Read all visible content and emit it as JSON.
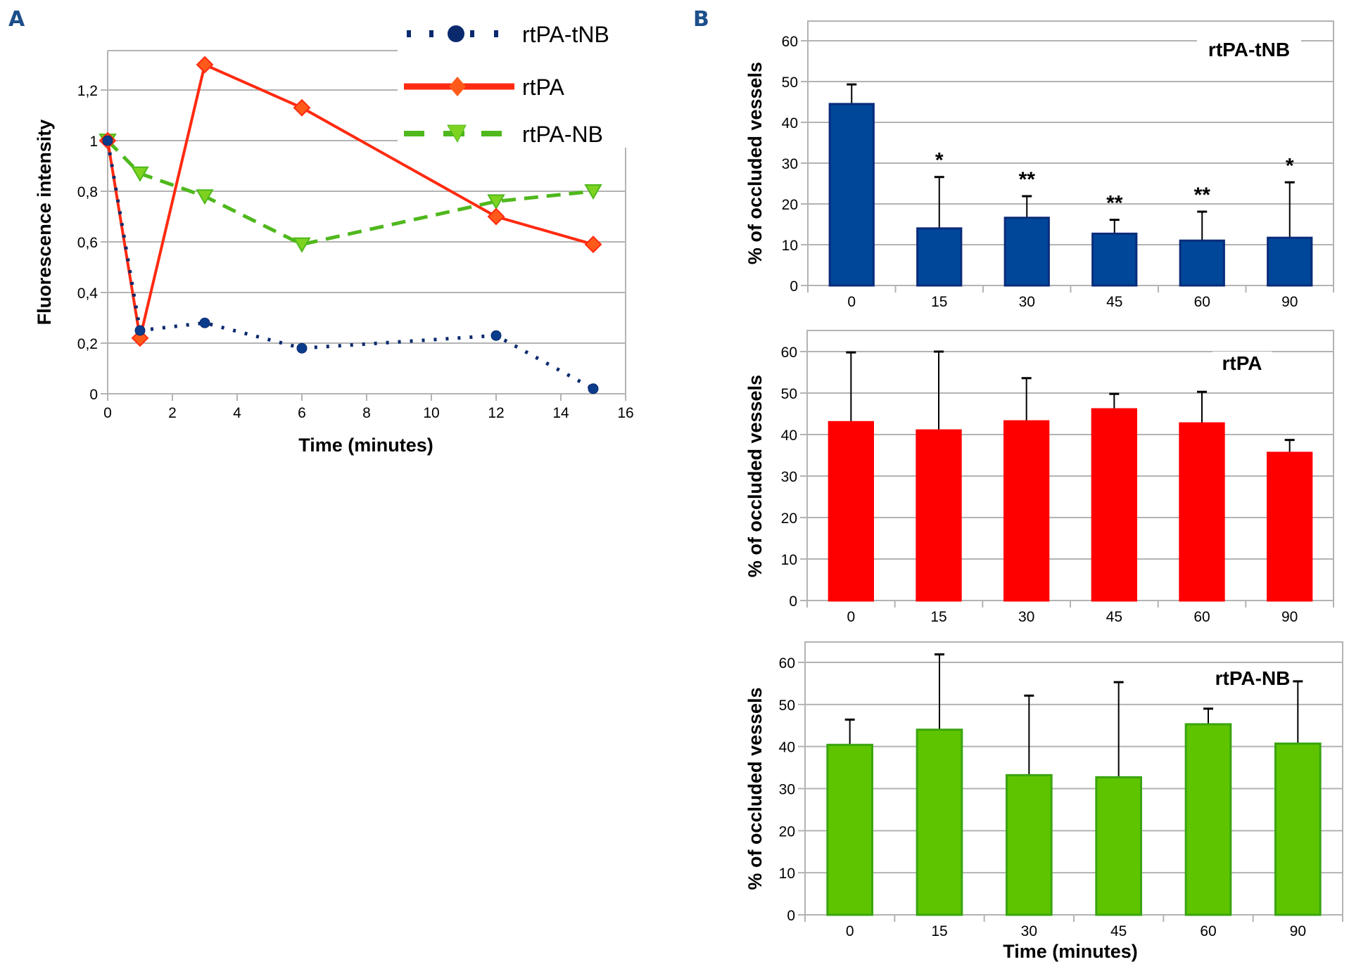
{
  "panels": {
    "a_label": "A",
    "b_label": "B"
  },
  "chart_data": [
    {
      "id": "A",
      "type": "line",
      "title": "",
      "xlabel": "Time (minutes)",
      "ylabel": "Fluorescence intensity",
      "xlim": [
        0,
        16
      ],
      "ylim": [
        0,
        1.3
      ],
      "xticks": [
        0,
        2,
        4,
        6,
        8,
        10,
        12,
        14,
        16
      ],
      "xtick_labels": [
        "0",
        "2",
        "4",
        "6",
        "8",
        "10",
        "12",
        "14",
        "16"
      ],
      "yticks": [
        0,
        0.2,
        0.4,
        0.6,
        0.8,
        1.0,
        1.2
      ],
      "ytick_labels": [
        "0",
        "0,2",
        "0,4",
        "0,6",
        "0,8",
        "1",
        "1,2"
      ],
      "grid": true,
      "legend_position": "top-right",
      "x": [
        0,
        1,
        3,
        6,
        12,
        15
      ],
      "series": [
        {
          "name": "rtPA-tNB",
          "color": "#0b2a6e",
          "style": "dotted",
          "marker": "circle",
          "values": [
            1.0,
            0.25,
            0.28,
            0.18,
            0.23,
            0.02
          ]
        },
        {
          "name": "rtPA",
          "color": "#ff2a10",
          "style": "solid",
          "marker": "diamond",
          "values": [
            1.0,
            0.22,
            1.3,
            1.13,
            0.7,
            0.59
          ]
        },
        {
          "name": "rtPA-NB",
          "color": "#4fb81c",
          "style": "dashed",
          "marker": "triangle-down",
          "values": [
            1.0,
            0.87,
            0.78,
            0.59,
            0.76,
            0.8
          ]
        }
      ]
    },
    {
      "id": "B-top",
      "type": "bar",
      "title": "rtPA-tNB",
      "xlabel": "",
      "ylabel": "% of occluded vessels",
      "ylim": [
        0,
        60
      ],
      "yticks": [
        0,
        10,
        20,
        30,
        40,
        50,
        60
      ],
      "ytick_labels": [
        "0",
        "10",
        "20",
        "30",
        "40",
        "50",
        "60"
      ],
      "grid": true,
      "color": "#00479a",
      "edge_color": "#0a2c7a",
      "categories": [
        "0",
        "15",
        "30",
        "45",
        "60",
        "90"
      ],
      "values": [
        44.5,
        14.0,
        16.6,
        12.7,
        11.0,
        11.7
      ],
      "error_upper": [
        49.3,
        26.6,
        21.9,
        16.1,
        18.1,
        25.3
      ],
      "significance": [
        "",
        "*",
        "**",
        "**",
        "**",
        "*"
      ]
    },
    {
      "id": "B-middle",
      "type": "bar",
      "title": "rtPA",
      "xlabel": "",
      "ylabel": "% of occluded vessels",
      "ylim": [
        0,
        60
      ],
      "yticks": [
        0,
        10,
        20,
        30,
        40,
        50,
        60
      ],
      "ytick_labels": [
        "0",
        "10",
        "20",
        "30",
        "40",
        "50",
        "60"
      ],
      "grid": true,
      "color": "#ff0000",
      "edge_color": "#ff0000",
      "categories": [
        "0",
        "15",
        "30",
        "45",
        "60",
        "90"
      ],
      "values": [
        43.0,
        41.0,
        43.2,
        46.1,
        42.7,
        35.6
      ],
      "error_upper": [
        59.8,
        60.0,
        53.6,
        49.8,
        50.3,
        38.7
      ],
      "significance": [
        "",
        "",
        "",
        "",
        "",
        ""
      ]
    },
    {
      "id": "B-bottom",
      "type": "bar",
      "title": "rtPA-NB",
      "xlabel": "Time (minutes)",
      "ylabel": "% of occluded vessels",
      "ylim": [
        0,
        60
      ],
      "yticks": [
        0,
        10,
        20,
        30,
        40,
        50,
        60
      ],
      "ytick_labels": [
        "0",
        "10",
        "20",
        "30",
        "40",
        "50",
        "60"
      ],
      "grid": true,
      "color": "#5ec400",
      "edge_color": "#3aa510",
      "categories": [
        "0",
        "15",
        "30",
        "45",
        "60",
        "90"
      ],
      "values": [
        40.4,
        44.0,
        33.2,
        32.7,
        45.3,
        40.7
      ],
      "error_upper": [
        46.4,
        61.9,
        52.1,
        55.3,
        49.0,
        55.5
      ],
      "significance": [
        "",
        "",
        "",
        "",
        "",
        ""
      ]
    }
  ]
}
